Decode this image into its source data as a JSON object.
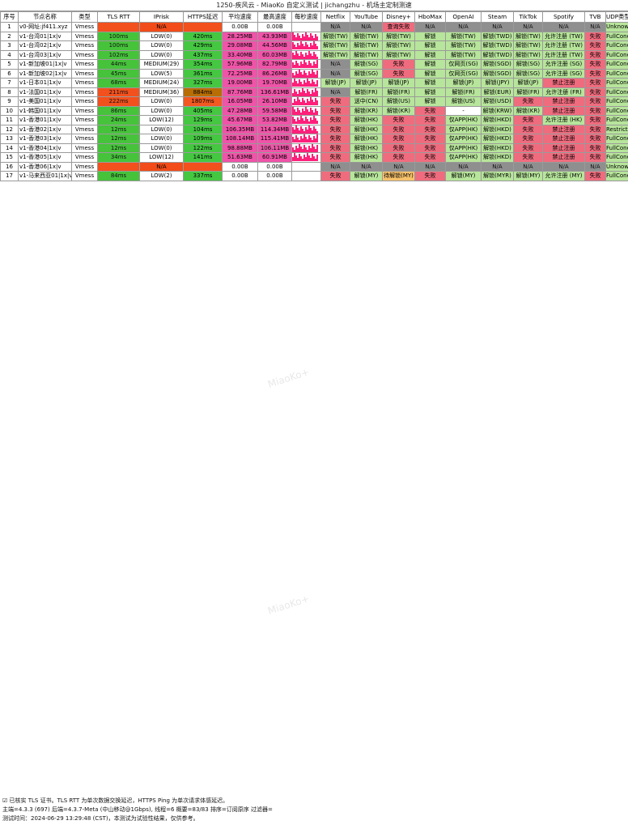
{
  "title": "1250-疾风云 - MiaoKo 自定义测试 | jichangzhu - 机场主定制测速",
  "columns": [
    "序号",
    "节点名称",
    "类型",
    "TLS RTT",
    "IPrisk",
    "HTTPS延迟",
    "平均速度",
    "最高速度",
    "每秒速度",
    "Netflix",
    "YouTube",
    "Disney+",
    "HboMax",
    "OpenAI",
    "Steam",
    "TikTok",
    "Spotify",
    "TVB",
    "UDP类型"
  ],
  "rows": [
    [
      "1",
      "v0-网址:jf411.xyz",
      "Vmess",
      "",
      "N/A",
      "",
      "0.00B",
      "0.00B",
      "",
      "N/A",
      "N/A",
      "查询失败",
      "N/A",
      "N/A",
      "N/A",
      "N/A",
      "N/A",
      "N/A",
      "Unknown"
    ],
    [
      "2",
      "v1-台湾01|1x|v",
      "Vmess",
      "100ms",
      "LOW(0)",
      "420ms",
      "28.25MB",
      "43.93MB",
      "",
      "解锁(TW)",
      "解锁(TW)",
      "解锁(TW)",
      "解锁",
      "解锁(TW)",
      "解锁(TWD)",
      "解锁(TW)",
      "允许注册 (TW)",
      "失败",
      "FullCone"
    ],
    [
      "3",
      "v1-台湾02|1x|v",
      "Vmess",
      "100ms",
      "LOW(0)",
      "429ms",
      "29.08MB",
      "44.56MB",
      "",
      "解锁(TW)",
      "解锁(TW)",
      "解锁(TW)",
      "解锁",
      "解锁(TW)",
      "解锁(TWD)",
      "解锁(TW)",
      "允许注册 (TW)",
      "失败",
      "FullCone"
    ],
    [
      "4",
      "v1-台湾03|1x|v",
      "Vmess",
      "102ms",
      "LOW(0)",
      "437ms",
      "33.40MB",
      "60.03MB",
      "",
      "解锁(TW)",
      "解锁(TW)",
      "解锁(TW)",
      "解锁",
      "解锁(TW)",
      "解锁(TWD)",
      "解锁(TW)",
      "允许注册 (TW)",
      "失败",
      "FullCone"
    ],
    [
      "5",
      "v1-新加坡01|1x|v",
      "Vmess",
      "44ms",
      "MEDIUM(29)",
      "354ms",
      "57.96MB",
      "82.79MB",
      "",
      "N/A",
      "解锁(SG)",
      "失败",
      "解锁",
      "仅网页(SG)",
      "解锁(SGD)",
      "解锁(SG)",
      "允许注册 (SG)",
      "失败",
      "FullCone"
    ],
    [
      "6",
      "v1-新加坡02|1x|v",
      "Vmess",
      "45ms",
      "LOW(5)",
      "361ms",
      "72.25MB",
      "86.26MB",
      "",
      "N/A",
      "解锁(SG)",
      "失败",
      "解锁",
      "仅网页(SG)",
      "解锁(SGD)",
      "解锁(SG)",
      "允许注册 (SG)",
      "失败",
      "FullCone"
    ],
    [
      "7",
      "v1-日本01|1x|v",
      "Vmess",
      "68ms",
      "MEDIUM(24)",
      "327ms",
      "19.00MB",
      "19.70MB",
      "",
      "解锁(JP)",
      "解锁(JP)",
      "解锁(JP)",
      "解锁",
      "解锁(JP)",
      "解锁(JPY)",
      "解锁(JP)",
      "禁止注册",
      "失败",
      "FullCone"
    ],
    [
      "8",
      "v1-法国01|1x|v",
      "Vmess",
      "211ms",
      "MEDIUM(36)",
      "884ms",
      "87.76MB",
      "136.61MB",
      "",
      "N/A",
      "解锁(FR)",
      "解锁(FR)",
      "解锁",
      "解锁(FR)",
      "解锁(EUR)",
      "解锁(FR)",
      "允许注册 (FR)",
      "失败",
      "FullCone"
    ],
    [
      "9",
      "v1-美国01|1x|v",
      "Vmess",
      "222ms",
      "LOW(0)",
      "1807ms",
      "16.05MB",
      "26.10MB",
      "",
      "失败",
      "送中(CN)",
      "解锁(US)",
      "解锁",
      "解锁(US)",
      "解锁(USD)",
      "失败",
      "禁止注册",
      "失败",
      "FullCone"
    ],
    [
      "10",
      "v1-韩国01|1x|v",
      "Vmess",
      "86ms",
      "LOW(0)",
      "405ms",
      "47.28MB",
      "59.58MB",
      "",
      "失败",
      "解锁(KR)",
      "解锁(KR)",
      "失败",
      "-",
      "解锁(KRW)",
      "解锁(KR)",
      "禁止注册",
      "失败",
      "FullCone"
    ],
    [
      "11",
      "v1-香港01|1x|v",
      "Vmess",
      "24ms",
      "LOW(12)",
      "129ms",
      "45.67MB",
      "53.82MB",
      "",
      "失败",
      "解锁(HK)",
      "失败",
      "失败",
      "仅APP(HK)",
      "解锁(HKD)",
      "失败",
      "允许注册 (HK)",
      "失败",
      "FullCone"
    ],
    [
      "12",
      "v1-香港02|1x|v",
      "Vmess",
      "12ms",
      "LOW(0)",
      "104ms",
      "106.35MB",
      "114.34MB",
      "",
      "失败",
      "解锁(HK)",
      "失败",
      "失败",
      "仅APP(HK)",
      "解锁(HKD)",
      "失败",
      "禁止注册",
      "失败",
      "RestrictedCone"
    ],
    [
      "13",
      "v1-香港03|1x|v",
      "Vmess",
      "12ms",
      "LOW(0)",
      "109ms",
      "108.14MB",
      "115.41MB",
      "",
      "失败",
      "解锁(HK)",
      "失败",
      "失败",
      "仅APP(HK)",
      "解锁(HKD)",
      "失败",
      "禁止注册",
      "失败",
      "FullCone"
    ],
    [
      "14",
      "v1-香港04|1x|v",
      "Vmess",
      "12ms",
      "LOW(0)",
      "122ms",
      "98.88MB",
      "106.11MB",
      "",
      "失败",
      "解锁(HK)",
      "失败",
      "失败",
      "仅APP(HK)",
      "解锁(HKD)",
      "失败",
      "禁止注册",
      "失败",
      "FullCone"
    ],
    [
      "15",
      "v1-香港05|1x|v",
      "Vmess",
      "34ms",
      "LOW(12)",
      "141ms",
      "51.63MB",
      "60.91MB",
      "",
      "失败",
      "解锁(HK)",
      "失败",
      "失败",
      "仅APP(HK)",
      "解锁(HKD)",
      "失败",
      "禁止注册",
      "失败",
      "FullCone"
    ],
    [
      "16",
      "v1-香港06|1x|v",
      "Vmess",
      "",
      "N/A",
      "",
      "0.00B",
      "0.00B",
      "",
      "N/A",
      "N/A",
      "N/A",
      "N/A",
      "N/A",
      "N/A",
      "N/A",
      "N/A",
      "N/A",
      "Unknown"
    ],
    [
      "17",
      "v1-马来西亚01|1x|v",
      "Vmess",
      "84ms",
      "LOW(2)",
      "337ms",
      "0.00B",
      "0.00B",
      "",
      "失败",
      "解锁(MY)",
      "待解锁(MY)",
      "失败",
      "解锁(MY)",
      "解锁(MYR)",
      "解锁(MY)",
      "允许注册 (MY)",
      "失败",
      "FullCone"
    ]
  ],
  "footer": [
    "☑ 已核实 TLS 证书。TLS RTT 为单次数据交换延迟，HTTPS Ping 为单次请求体感延迟。",
    "主端=4.3.3 (697) 后端=4.3.7-Meta (中山移动@1Gbps), 线程=6 概要=83/83 排序=订阅原序 过滤器=",
    "测试时间：2024-06-29 13:29:48 (CST)，本测试为试验性结果，仅供参考。"
  ],
  "watermark": "MiaoKo+",
  "colors": {
    "ok": "#b7e59b",
    "bad": "#ef6c7e",
    "na": "#8f8f8f",
    "rtt_ok": "#46c33b",
    "rtt_bad": "#f2501d"
  }
}
